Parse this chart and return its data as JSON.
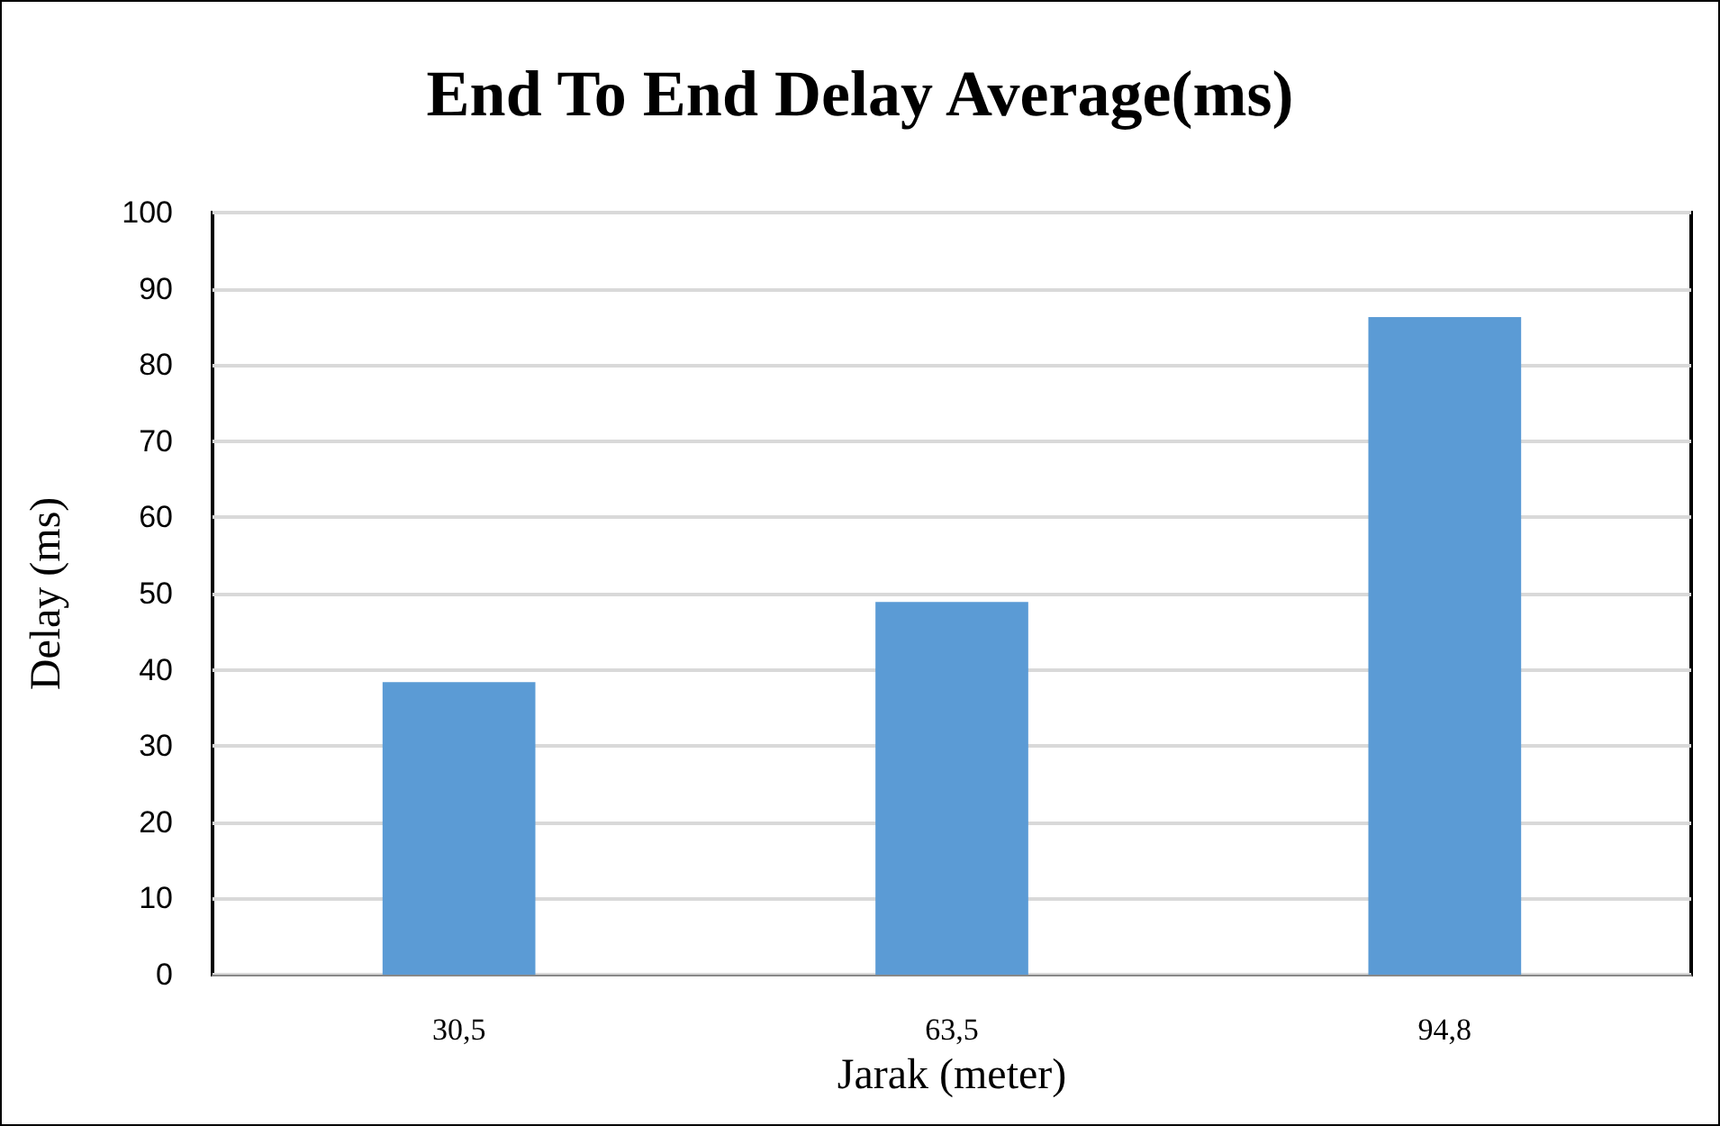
{
  "chart_data": {
    "type": "bar",
    "title": "End To End Delay Average(ms)",
    "xlabel": "Jarak (meter)",
    "ylabel": "Delay (ms)",
    "categories": [
      "30,5",
      "63,5",
      "94,8"
    ],
    "values": [
      38.4,
      48.9,
      86.3
    ],
    "color": "#5b9bd5",
    "ylim": [
      0,
      100
    ],
    "yticks": [
      0,
      10,
      20,
      30,
      40,
      50,
      60,
      70,
      80,
      90,
      100
    ],
    "grid": "y"
  }
}
